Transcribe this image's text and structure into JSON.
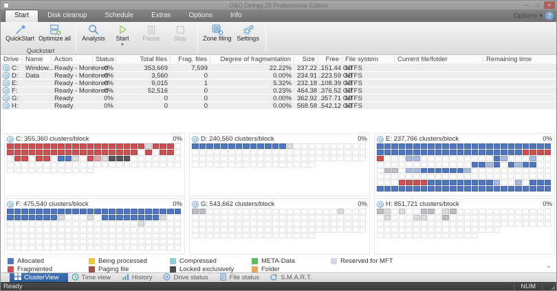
{
  "window": {
    "title": "O&O Defrag 25 Professional Edition",
    "status": "Ready",
    "num": "NUM"
  },
  "menu": {
    "tabs": [
      "Start",
      "Disk cleanup",
      "Schedule",
      "Extras",
      "Options",
      "Info"
    ],
    "active_tab": "Start",
    "options_label": "Options",
    "help_glyph": "?"
  },
  "ribbon": {
    "group_label": "Quickstart",
    "buttons": [
      {
        "label": "QuickStart",
        "icon": "wand",
        "enabled": true
      },
      {
        "label": "Optimize all",
        "icon": "disk-stack",
        "enabled": true
      },
      {
        "label": "Analysis",
        "icon": "magnifier",
        "enabled": true
      },
      {
        "label": "Start",
        "icon": "play",
        "enabled": true,
        "dropdown": true
      },
      {
        "label": "Pause",
        "icon": "pause",
        "enabled": false
      },
      {
        "label": "Stop",
        "icon": "stop",
        "enabled": false
      },
      {
        "label": "Zone filing",
        "icon": "zones",
        "enabled": true
      },
      {
        "label": "Settings",
        "icon": "gears",
        "enabled": true
      }
    ]
  },
  "table": {
    "columns": [
      "Drive",
      "Name",
      "Action",
      "Status",
      "Total files",
      "Frag. files",
      "Degree of fragmentation",
      "Size",
      "Free",
      "File system",
      "Current file/folder",
      "Remaining time"
    ],
    "rows": [
      {
        "drive": "C:",
        "name": "Window...",
        "action": "Ready - Monitored",
        "status": "0%",
        "total_files": "353,669",
        "frag_files": "7,599",
        "degree": "22.22%",
        "size": "237.22 ..",
        "free": "151.44 GB",
        "file_system": "NTFS",
        "current": "",
        "remaining": ""
      },
      {
        "drive": "D:",
        "name": "Data",
        "action": "Ready - Monitored",
        "status": "0%",
        "total_files": "3,560",
        "frag_files": "0",
        "degree": "0.00%",
        "size": "234.91 ..",
        "free": "223.59 GB",
        "file_system": "NTFS",
        "current": "",
        "remaining": ""
      },
      {
        "drive": "E:",
        "name": "",
        "action": "Ready - Monitored",
        "status": "0%",
        "total_files": "9,015",
        "frag_files": "1",
        "degree": "5.32%",
        "size": "232.18 ..",
        "free": "108.39 GB",
        "file_system": "NTFS",
        "current": "",
        "remaining": ""
      },
      {
        "drive": "F:",
        "name": "",
        "action": "Ready - Monitored",
        "status": "0%",
        "total_files": "52,516",
        "frag_files": "0",
        "degree": "0.23%",
        "size": "464.38 ..",
        "free": "376.52 GB",
        "file_system": "NTFS",
        "current": "",
        "remaining": ""
      },
      {
        "drive": "G:",
        "name": "",
        "action": "Ready",
        "status": "0%",
        "total_files": "0",
        "frag_files": "0",
        "degree": "0.00%",
        "size": "362.92 ..",
        "free": "357.71 GB",
        "file_system": "NTFS",
        "current": "",
        "remaining": ""
      },
      {
        "drive": "H:",
        "name": "",
        "action": "Ready",
        "status": "0%",
        "total_files": "0",
        "frag_files": "0",
        "degree": "0.00%",
        "size": "568.58 ..",
        "free": "542.12 GB",
        "file_system": "NTFS",
        "current": "",
        "remaining": ""
      }
    ]
  },
  "cluster_colors": {
    "A": "#4e76c2",
    "a": "#a7b9e0",
    "F": "#cd4f4f",
    "f": "#e2a3a0",
    "L": "#56565a",
    "l": "#86868a",
    "M": "#bfbfc3",
    "m": "#dcdcdf"
  },
  "panels": [
    {
      "drive": "C",
      "title": "C: 355,360 clusters/block",
      "percent": "0%",
      "rows": [
        "FFFFFFFFFFFFFFFFFFFmFFF.",
        "FFFFFFFFFFFFFFFFFF.F.FF.",
        ".FF.FF.AAm.FfmLLL.......",
        "........................",
        "............"
      ]
    },
    {
      "drive": "D",
      "title": "D: 240,560 clusters/block",
      "percent": "0%",
      "rows": [
        "AAAAAAAAAAAAAm..........",
        "........................",
        "........................",
        "................."
      ]
    },
    {
      "drive": "E",
      "title": "E: 237,766 clusters/block",
      "percent": "0%",
      "rows": [
        "AAAAAAAAAAAAAAAAAAAAAAAA",
        "AAAAAAAAAAAAAAAAAAAAFFFF",
        "F...aa..........Aa...a..",
        ".............AAaA.AaAA..",
        ".MM.aaAAAAAAa...........",
        "........................",
        "...FFFFAAAAAAAAAa..a.AAA",
        "AAAAAAAAAAAAAAAAAAAAAAAA"
      ]
    },
    {
      "drive": "F",
      "title": "F: 475,540 clusters/block",
      "percent": "0%",
      "rows": [
        "AAAAAAAAAAAAAAAAAAAAAAAA",
        "AAAAAAAm...m.AAAAAAAAm..",
        "..................m.....",
        "........................",
        "........................",
        "........................",
        "........................"
      ]
    },
    {
      "drive": "G",
      "title": "G: 543,662 clusters/block",
      "percent": "0%",
      "rows": [
        "MM..................m...",
        "........................",
        "........................",
        "........................",
        "................."
      ]
    },
    {
      "drive": "H",
      "title": "H: 851,721 clusters/block",
      "percent": "0%",
      "rows": [
        "Mm.m..MM.mM.............",
        ".m...mm..M..............",
        "........................",
        ".................",
        ".............."
      ]
    }
  ],
  "legend": {
    "rows": [
      [
        {
          "label": "Allocated",
          "color": "#4e76c2"
        },
        {
          "label": "Being processed",
          "color": "#ecc83e"
        },
        {
          "label": "Compressed",
          "color": "#92cdd1"
        },
        {
          "label": "META-Data",
          "color": "#5dbb63"
        },
        {
          "label": "Reserved for MFT",
          "color": "#d4d2e4"
        }
      ],
      [
        {
          "label": "Fragmented",
          "color": "#cd4f4f"
        },
        {
          "label": "Paging file",
          "color": "#a3524a"
        },
        {
          "label": "Locked exclusively",
          "color": "#4c4c50"
        },
        {
          "label": "Folder",
          "color": "#eca45c"
        }
      ]
    ]
  },
  "bottom_tabs": [
    {
      "label": "ClusterView",
      "active": true
    },
    {
      "label": "Time view",
      "active": false
    },
    {
      "label": "History",
      "active": false
    },
    {
      "label": "Drive status",
      "active": false
    },
    {
      "label": "File status",
      "active": false
    },
    {
      "label": "S.M.A.R.T.",
      "active": false
    }
  ]
}
